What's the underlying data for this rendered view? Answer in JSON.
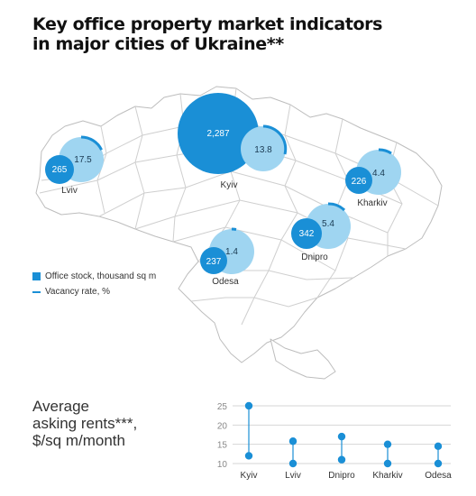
{
  "title": {
    "line1": "Key office property market indicators",
    "line2": "in major cities of Ukraine**"
  },
  "legend": {
    "stock_label": "Office stock, thousand sq m",
    "vacancy_label": "Vacancy rate, %"
  },
  "colors": {
    "stock": "#1a8fd6",
    "vacancy": "#9fd5f1",
    "vacancy_arc": "#1a8fd6",
    "map_line": "#bdbdbd",
    "rent_dot": "#1a8fd6"
  },
  "cities": [
    {
      "name": "Lviv",
      "stock": "265",
      "vacancy": "17.5"
    },
    {
      "name": "Kyiv",
      "stock": "2,287",
      "vacancy": "13.8"
    },
    {
      "name": "Kharkiv",
      "stock": "226",
      "vacancy": "4.4"
    },
    {
      "name": "Dnipro",
      "stock": "342",
      "vacancy": "5.4"
    },
    {
      "name": "Odesa",
      "stock": "237",
      "vacancy": "1.4"
    }
  ],
  "rent_title": {
    "line1": "Average",
    "line2": "asking rents***,",
    "line3": "$/sq m/month"
  },
  "chart_data": {
    "type": "scatter",
    "title": "Average asking rents***, $/sq m/month",
    "categories": [
      "Kyiv",
      "Lviv",
      "Dnipro",
      "Kharkiv",
      "Odesa"
    ],
    "series": [
      {
        "values": [
          25,
          15.8,
          17,
          15,
          14.5
        ]
      },
      {
        "values": [
          12,
          10,
          11,
          10,
          10
        ]
      }
    ],
    "ylim": [
      10,
      25
    ],
    "yticks": [
      "25",
      "20",
      "15",
      "10"
    ],
    "grid": true
  }
}
